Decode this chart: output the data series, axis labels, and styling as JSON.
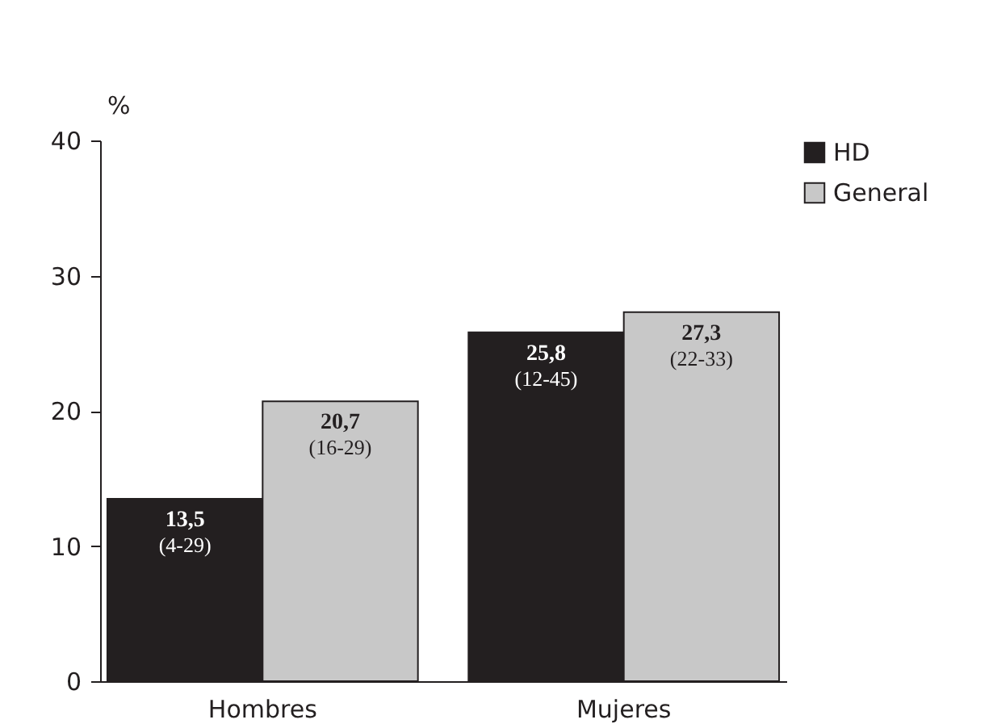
{
  "chart_data": {
    "type": "bar",
    "ylabel": "%",
    "categories": [
      "Hombres",
      "Mujeres"
    ],
    "series": [
      {
        "name": "HD",
        "color": "#231f20",
        "values": [
          13.5,
          25.8
        ],
        "value_labels": [
          "13,5 (4-29)",
          "25,8 (12-45)"
        ]
      },
      {
        "name": "General",
        "color": "#c8c8c8",
        "values": [
          20.7,
          27.3
        ],
        "value_labels": [
          "20,7 (16-29)",
          "27,3 (22-33)"
        ]
      }
    ],
    "ylim": [
      0,
      40
    ],
    "yticks": [
      0,
      10,
      20,
      30,
      40
    ],
    "grid": false,
    "legend": "right"
  }
}
